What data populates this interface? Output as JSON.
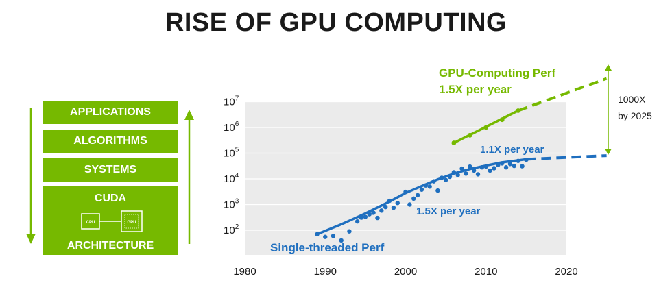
{
  "title": "RISE OF GPU COMPUTING",
  "stack": {
    "layers": [
      "APPLICATIONS",
      "ALGORITHMS",
      "SYSTEMS"
    ],
    "cuda_label": "CUDA",
    "cpu_label": "CPU",
    "gpu_label": "GPU",
    "architecture_label": "ARCHITECTURE"
  },
  "colors": {
    "green": "#76b900",
    "blue": "#1f6fbf",
    "plot_bg": "#ebebeb"
  },
  "chart_data": {
    "type": "scatter",
    "title": "",
    "xlabel": "",
    "ylabel": "",
    "x_ticks": [
      1980,
      1990,
      2000,
      2010,
      2020
    ],
    "xlim": [
      1980,
      2020
    ],
    "y_scale": "log",
    "y_ticks": [
      {
        "base": "10",
        "exp": "2",
        "value": 100
      },
      {
        "base": "10",
        "exp": "3",
        "value": 1000
      },
      {
        "base": "10",
        "exp": "4",
        "value": 10000
      },
      {
        "base": "10",
        "exp": "5",
        "value": 100000
      },
      {
        "base": "10",
        "exp": "6",
        "value": 1000000
      },
      {
        "base": "10",
        "exp": "7",
        "value": 10000000
      }
    ],
    "ylim": [
      30,
      10000000
    ],
    "grid": true,
    "series": [
      {
        "name": "Single-threaded Perf",
        "color": "#1f6fbf",
        "points": [
          [
            1989,
            70
          ],
          [
            1990,
            55
          ],
          [
            1991,
            60
          ],
          [
            1992,
            40
          ],
          [
            1993,
            90
          ],
          [
            1994,
            220
          ],
          [
            1994.5,
            310
          ],
          [
            1995,
            330
          ],
          [
            1995.5,
            420
          ],
          [
            1996,
            480
          ],
          [
            1996.5,
            300
          ],
          [
            1997,
            580
          ],
          [
            1997.5,
            800
          ],
          [
            1998,
            1400
          ],
          [
            1998.5,
            750
          ],
          [
            1999,
            1150
          ],
          [
            2000,
            3100
          ],
          [
            2000.5,
            1000
          ],
          [
            2001,
            1700
          ],
          [
            2001.5,
            2300
          ],
          [
            2002,
            3800
          ],
          [
            2002.5,
            5500
          ],
          [
            2003,
            5000
          ],
          [
            2003.5,
            8000
          ],
          [
            2004,
            3500
          ],
          [
            2004.5,
            11000
          ],
          [
            2005,
            9000
          ],
          [
            2005.5,
            12000
          ],
          [
            2006,
            18000
          ],
          [
            2006.5,
            14000
          ],
          [
            2007,
            25000
          ],
          [
            2007.5,
            16000
          ],
          [
            2008,
            30000
          ],
          [
            2008.5,
            21000
          ],
          [
            2009,
            15000
          ],
          [
            2009.5,
            28000
          ],
          [
            2010,
            30000
          ],
          [
            2010.5,
            21000
          ],
          [
            2011,
            26000
          ],
          [
            2011.5,
            35000
          ],
          [
            2012,
            40000
          ],
          [
            2012.5,
            28000
          ],
          [
            2013,
            38000
          ],
          [
            2013.5,
            32000
          ],
          [
            2014,
            50000
          ],
          [
            2014.5,
            31000
          ],
          [
            2015,
            55000
          ]
        ],
        "trend": [
          [
            1989,
            70
          ],
          [
            1992,
            170
          ],
          [
            1995,
            450
          ],
          [
            1998,
            1300
          ],
          [
            2000,
            2800
          ],
          [
            2002,
            5200
          ],
          [
            2004,
            9500
          ],
          [
            2006,
            16000
          ],
          [
            2008,
            24000
          ],
          [
            2010,
            33000
          ],
          [
            2012,
            44000
          ],
          [
            2015,
            58000
          ]
        ],
        "projection": [
          [
            2015,
            58000
          ],
          [
            2025,
            80000
          ]
        ],
        "annotations": [
          "1.5X per year",
          "1.1X per year"
        ]
      },
      {
        "name": "GPU-Computing Perf",
        "color": "#76b900",
        "points": [
          [
            2006,
            250000
          ],
          [
            2008,
            500000
          ],
          [
            2010,
            1000000
          ],
          [
            2012,
            2000000
          ],
          [
            2014,
            4500000
          ]
        ],
        "trend": [
          [
            2006,
            250000
          ],
          [
            2014,
            4500000
          ]
        ],
        "projection": [
          [
            2014,
            4500000
          ],
          [
            2025,
            80000000
          ]
        ],
        "annotations": [
          "1.5X per year"
        ]
      }
    ],
    "gap_annotation": [
      "1000X",
      "by 2025"
    ]
  }
}
